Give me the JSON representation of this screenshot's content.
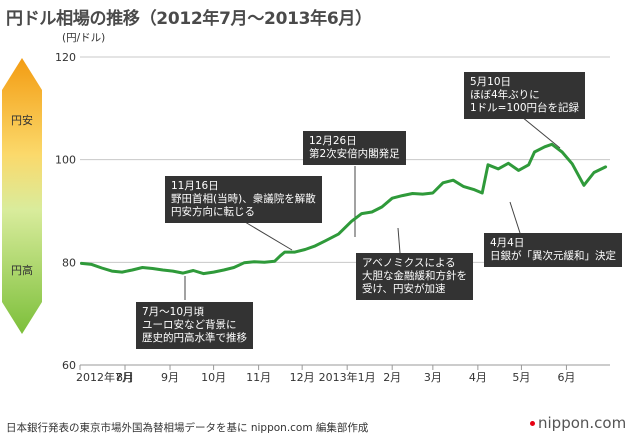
{
  "title": "円ドル相場の推移（2012年7月～2013年6月）",
  "unit_label": "(円/ドル)",
  "scale_labels": {
    "top": "円安",
    "bottom": "円高"
  },
  "colors": {
    "line": "#2f9a3a",
    "grid": "#c8c8c8",
    "annotation_bg": "#333333",
    "arrow_top": "#f3a31b",
    "arrow_bottom": "#8cc63f"
  },
  "annotations": [
    {
      "id": "jul-oct",
      "text": "7月～10月頃\nユーロ安など背景に\n歴史的円高水準で推移"
    },
    {
      "id": "nov16",
      "text": "11月16日\n野田首相(当時)、衆議院を解散\n円安方向に転じる"
    },
    {
      "id": "dec26",
      "text": "12月26日\n第2次安倍内閣発足"
    },
    {
      "id": "abenomics",
      "text": "アベノミクスによる\n大胆な金融緩和方針を\n受け、円安が加速"
    },
    {
      "id": "may10",
      "text": "5月10日\nほぼ4年ぶりに\n1ドル=100円台を記録"
    },
    {
      "id": "apr4",
      "text": "4月4日\n日銀が「異次元緩和」決定"
    }
  ],
  "source": "日本銀行発表の東京市場外国為替相場データを基に nippon.com 編集部作成",
  "brand": "nippon.com",
  "chart_data": {
    "type": "line",
    "ylim": [
      60,
      120
    ],
    "yticks": [
      60,
      80,
      100,
      120
    ],
    "grid": true,
    "xtick_labels": [
      "2012年7月",
      "8月",
      "9月",
      "10月",
      "11月",
      "12月",
      "2013年1月",
      "2月",
      "3月",
      "4月",
      "5月",
      "6月"
    ],
    "series": [
      {
        "x": [
          "2012-07-02",
          "2012-07-09",
          "2012-07-16",
          "2012-07-23",
          "2012-07-30",
          "2012-08-06",
          "2012-08-13",
          "2012-08-20",
          "2012-08-27",
          "2012-09-03",
          "2012-09-10",
          "2012-09-17",
          "2012-09-24",
          "2012-10-01",
          "2012-10-08",
          "2012-10-15",
          "2012-10-22",
          "2012-10-29",
          "2012-11-05",
          "2012-11-12",
          "2012-11-16",
          "2012-11-19",
          "2012-11-26",
          "2012-12-03",
          "2012-12-10",
          "2012-12-17",
          "2012-12-26",
          "2013-01-04",
          "2013-01-11",
          "2013-01-18",
          "2013-01-25",
          "2013-02-01",
          "2013-02-08",
          "2013-02-15",
          "2013-02-22",
          "2013-03-01",
          "2013-03-08",
          "2013-03-15",
          "2013-03-22",
          "2013-03-29",
          "2013-04-04",
          "2013-04-08",
          "2013-04-15",
          "2013-04-22",
          "2013-04-29",
          "2013-05-06",
          "2013-05-10",
          "2013-05-17",
          "2013-05-22",
          "2013-05-29",
          "2013-06-05",
          "2013-06-13",
          "2013-06-20",
          "2013-06-28"
        ],
        "values": [
          79.8,
          79.6,
          78.9,
          78.3,
          78.1,
          78.5,
          79.0,
          78.8,
          78.5,
          78.3,
          77.9,
          78.4,
          77.8,
          78.1,
          78.5,
          79.0,
          79.9,
          80.1,
          80.0,
          80.2,
          81.3,
          82.0,
          82.0,
          82.5,
          83.2,
          84.2,
          85.5,
          88.0,
          89.5,
          89.8,
          90.8,
          92.5,
          93.0,
          93.4,
          93.3,
          93.5,
          95.5,
          96.0,
          94.8,
          94.2,
          93.5,
          99.0,
          98.2,
          99.3,
          97.9,
          99.0,
          101.5,
          102.5,
          103.0,
          101.5,
          99.2,
          95.0,
          97.5,
          98.6
        ]
      }
    ]
  }
}
